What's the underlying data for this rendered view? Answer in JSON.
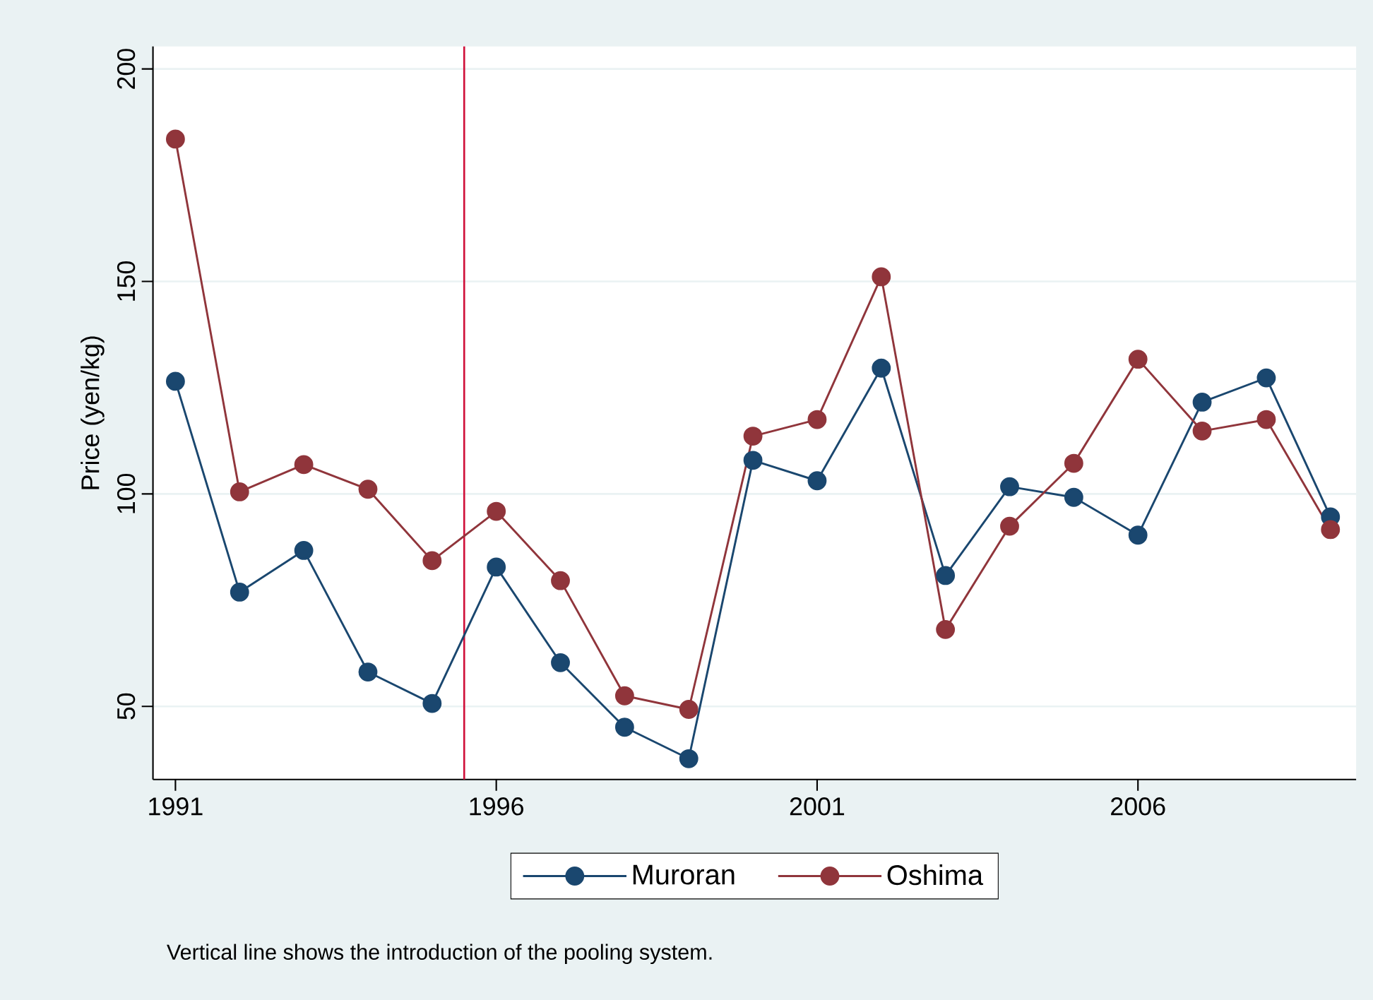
{
  "chart_data": {
    "type": "line",
    "ylabel": "Price (yen/kg)",
    "x": [
      1991,
      1992,
      1993,
      1994,
      1995,
      1996,
      1997,
      1998,
      1999,
      2000,
      2001,
      2002,
      2003,
      2004,
      2005,
      2006,
      2007,
      2008,
      2009
    ],
    "series": [
      {
        "name": "Muroran",
        "color": "#1a476f",
        "values": [
          126.5,
          76.9,
          86.7,
          58.1,
          50.7,
          82.8,
          60.3,
          45.1,
          37.7,
          107.9,
          103.1,
          129.6,
          80.8,
          101.7,
          99.2,
          90.3,
          121.6,
          127.3,
          94.6
        ]
      },
      {
        "name": "Oshima",
        "color": "#90353b",
        "values": [
          183.5,
          100.5,
          106.9,
          101.1,
          84.3,
          95.9,
          79.6,
          52.5,
          49.3,
          113.6,
          117.5,
          151.1,
          68.1,
          92.4,
          107.2,
          131.7,
          114.8,
          117.5,
          91.6
        ]
      }
    ],
    "xlim": [
      1990.65,
      2009.4
    ],
    "ylim": [
      32.8,
      205.3
    ],
    "xticks": [
      1991,
      1996,
      2001,
      2006
    ],
    "yticks": [
      50,
      100,
      150,
      200
    ],
    "ref_lines": [
      {
        "axis": "x",
        "value": 1995.5,
        "color": "#d0103a"
      }
    ],
    "annotations": [
      "Vertical line shows the introduction of the pooling system."
    ],
    "grid": "y",
    "legend": "bottom",
    "marker": "circle",
    "line_style": "solid"
  }
}
